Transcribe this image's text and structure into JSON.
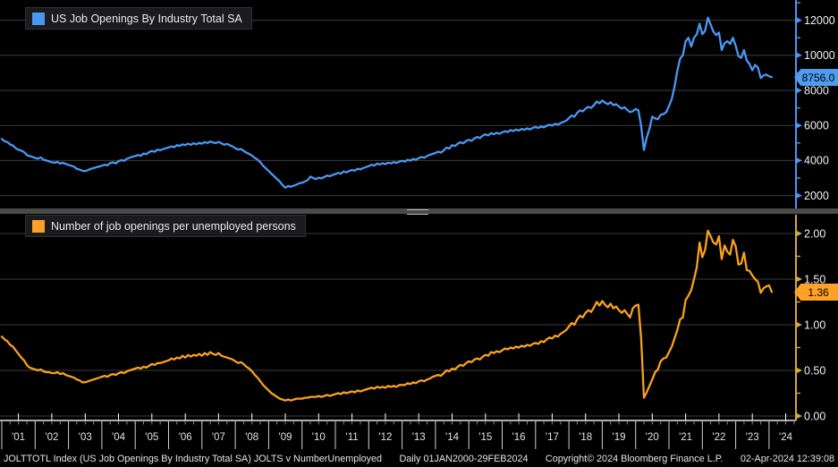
{
  "top_panel": {
    "legend_label": "US Job Openings By Industry Total SA",
    "legend_color": "#4a97f2",
    "last_value_label": "8756.0"
  },
  "bottom_panel": {
    "legend_label": "Number of job openings per unemployed persons",
    "legend_color": "#ffa028",
    "last_value_label": "1.36"
  },
  "colors": {
    "top_line": "#4a97f2",
    "top_axis": "#4a97f2",
    "bottom_line": "#f9a11b",
    "bottom_axis": "#d4a937",
    "grid": "#3c3c3c",
    "baseline": "#e8e8e8",
    "tick_label": "#f2f2f2",
    "year_label": "#e2e2e2"
  },
  "x_axis": {
    "year_labels": [
      "'01",
      "'02",
      "'03",
      "'04",
      "'05",
      "'06",
      "'07",
      "'08",
      "'09",
      "'10",
      "'11",
      "'12",
      "'13",
      "'14",
      "'15",
      "'16",
      "'17",
      "'18",
      "'19",
      "'20",
      "'21",
      "'22",
      "'23",
      "'24"
    ]
  },
  "status_bar": {
    "left": "JOLTTOTL Index (US Job Openings By Industry Total SA) JOLTS v NumberUnemployed",
    "range": "Daily 01JAN2000-29FEB2024",
    "copyright": "Copyright© 2024 Bloomberg Finance L.P.",
    "timestamp": "02-Apr-2024 12:39:08"
  },
  "chart_data": [
    {
      "type": "line",
      "title": "US Job Openings By Industry Total SA",
      "panel": "top",
      "x_start": "2001-01",
      "x_end": "2024-02",
      "freq": "monthly",
      "ylim": [
        1500,
        13000
      ],
      "yticks": [
        2000,
        4000,
        6000,
        8000,
        10000,
        12000
      ],
      "yticks_minor": [
        3000,
        5000,
        7000,
        9000,
        11000,
        13000
      ],
      "last_value": 8756.0,
      "legend_position": "top-left",
      "grid": true,
      "series": [
        {
          "name": "US Job Openings By Industry Total SA",
          "color": "#4a97f2",
          "values": [
            5230,
            5100,
            5050,
            4920,
            4850,
            4700,
            4610,
            4560,
            4480,
            4310,
            4250,
            4210,
            4150,
            4100,
            4180,
            4050,
            4000,
            3950,
            3900,
            3870,
            3920,
            3820,
            3870,
            3800,
            3750,
            3700,
            3650,
            3520,
            3480,
            3420,
            3390,
            3460,
            3520,
            3570,
            3610,
            3660,
            3700,
            3760,
            3720,
            3850,
            3900,
            3830,
            3960,
            4020,
            3980,
            4100,
            4160,
            4220,
            4250,
            4310,
            4270,
            4400,
            4360,
            4480,
            4540,
            4500,
            4620,
            4580,
            4650,
            4700,
            4740,
            4800,
            4760,
            4870,
            4830,
            4920,
            4880,
            4960,
            4900,
            4980,
            4930,
            5000,
            4960,
            5050,
            5000,
            5080,
            5030,
            4990,
            5060,
            4980,
            4900,
            4950,
            4870,
            4800,
            4700,
            4620,
            4660,
            4550,
            4450,
            4380,
            4280,
            4150,
            4050,
            3900,
            3700,
            3550,
            3400,
            3250,
            3100,
            2950,
            2800,
            2600,
            2450,
            2550,
            2500,
            2560,
            2620,
            2700,
            2730,
            2800,
            2880,
            3080,
            3000,
            2940,
            3020,
            2980,
            3060,
            3140,
            3100,
            3180,
            3230,
            3290,
            3250,
            3370,
            3320,
            3410,
            3460,
            3420,
            3530,
            3490,
            3570,
            3620,
            3680,
            3760,
            3710,
            3820,
            3770,
            3840,
            3790,
            3880,
            3830,
            3910,
            3860,
            3940,
            3980,
            3940,
            4040,
            3990,
            4090,
            4040,
            4140,
            4200,
            4160,
            4260,
            4320,
            4380,
            4430,
            4500,
            4450,
            4580,
            4740,
            4680,
            4880,
            4820,
            4960,
            5040,
            4980,
            5110,
            5180,
            5120,
            5260,
            5340,
            5280,
            5420,
            5490,
            5430,
            5560,
            5500,
            5580,
            5520,
            5600,
            5670,
            5620,
            5730,
            5680,
            5760,
            5710,
            5800,
            5750,
            5830,
            5770,
            5860,
            5910,
            5850,
            5940,
            5890,
            5980,
            6040,
            5990,
            6090,
            6040,
            6140,
            6200,
            6260,
            6420,
            6560,
            6500,
            6720,
            6860,
            6800,
            6960,
            7060,
            7000,
            7160,
            7360,
            7260,
            7420,
            7300,
            7210,
            7320,
            7160,
            7210,
            7080,
            6960,
            7040,
            6880,
            6760,
            6810,
            6940,
            6860,
            5960,
            4600,
            5300,
            5800,
            6500,
            6400,
            6350,
            6600,
            6650,
            6750,
            7100,
            7500,
            8200,
            9100,
            9800,
            10000,
            10800,
            11000,
            10500,
            11000,
            11200,
            11800,
            11200,
            11400,
            12150,
            11750,
            11350,
            11150,
            11300,
            10300,
            10700,
            10800,
            10650,
            11000,
            10550,
            9950,
            9850,
            10300,
            9700,
            9500,
            9150,
            9450,
            9300,
            8700,
            8850,
            8900,
            8800,
            8756
          ]
        }
      ]
    },
    {
      "type": "line",
      "title": "Number of job openings per unemployed persons",
      "panel": "bottom",
      "x_start": "2001-01",
      "x_end": "2024-02",
      "freq": "monthly",
      "ylim": [
        0,
        2.2
      ],
      "yticks": [
        0.0,
        0.5,
        1.0,
        1.5,
        2.0
      ],
      "yticks_minor": [
        0.25,
        0.75,
        1.25,
        1.75
      ],
      "last_value": 1.36,
      "legend_position": "top-left",
      "grid": true,
      "series": [
        {
          "name": "Number of job openings per unemployed persons",
          "color": "#f9a11b",
          "values": [
            0.87,
            0.84,
            0.82,
            0.78,
            0.76,
            0.72,
            0.68,
            0.64,
            0.61,
            0.56,
            0.53,
            0.52,
            0.51,
            0.5,
            0.51,
            0.49,
            0.48,
            0.48,
            0.47,
            0.47,
            0.48,
            0.46,
            0.47,
            0.45,
            0.44,
            0.43,
            0.42,
            0.4,
            0.39,
            0.37,
            0.37,
            0.38,
            0.39,
            0.4,
            0.41,
            0.42,
            0.43,
            0.44,
            0.43,
            0.45,
            0.46,
            0.45,
            0.47,
            0.48,
            0.47,
            0.49,
            0.5,
            0.51,
            0.52,
            0.53,
            0.52,
            0.54,
            0.53,
            0.55,
            0.57,
            0.56,
            0.58,
            0.58,
            0.59,
            0.6,
            0.61,
            0.63,
            0.62,
            0.64,
            0.63,
            0.66,
            0.64,
            0.67,
            0.65,
            0.67,
            0.66,
            0.68,
            0.66,
            0.69,
            0.67,
            0.7,
            0.68,
            0.67,
            0.69,
            0.66,
            0.65,
            0.64,
            0.63,
            0.62,
            0.6,
            0.58,
            0.59,
            0.57,
            0.54,
            0.52,
            0.49,
            0.45,
            0.42,
            0.38,
            0.34,
            0.31,
            0.28,
            0.25,
            0.23,
            0.21,
            0.19,
            0.18,
            0.17,
            0.18,
            0.17,
            0.18,
            0.19,
            0.19,
            0.19,
            0.2,
            0.2,
            0.21,
            0.21,
            0.21,
            0.22,
            0.21,
            0.22,
            0.23,
            0.22,
            0.23,
            0.24,
            0.25,
            0.24,
            0.26,
            0.25,
            0.26,
            0.27,
            0.26,
            0.28,
            0.27,
            0.28,
            0.29,
            0.3,
            0.31,
            0.3,
            0.32,
            0.31,
            0.32,
            0.31,
            0.33,
            0.32,
            0.33,
            0.32,
            0.34,
            0.34,
            0.34,
            0.36,
            0.35,
            0.37,
            0.36,
            0.38,
            0.39,
            0.38,
            0.4,
            0.41,
            0.43,
            0.44,
            0.45,
            0.44,
            0.47,
            0.5,
            0.49,
            0.52,
            0.51,
            0.54,
            0.56,
            0.55,
            0.58,
            0.6,
            0.59,
            0.62,
            0.63,
            0.62,
            0.65,
            0.67,
            0.66,
            0.7,
            0.69,
            0.71,
            0.7,
            0.72,
            0.74,
            0.73,
            0.75,
            0.74,
            0.76,
            0.75,
            0.77,
            0.76,
            0.78,
            0.77,
            0.79,
            0.8,
            0.79,
            0.82,
            0.81,
            0.84,
            0.86,
            0.85,
            0.88,
            0.87,
            0.9,
            0.92,
            0.94,
            0.98,
            1.02,
            1.0,
            1.06,
            1.1,
            1.08,
            1.13,
            1.16,
            1.14,
            1.19,
            1.25,
            1.21,
            1.26,
            1.22,
            1.19,
            1.23,
            1.18,
            1.2,
            1.16,
            1.13,
            1.16,
            1.12,
            1.08,
            1.18,
            1.21,
            1.22,
            0.85,
            0.2,
            0.26,
            0.33,
            0.4,
            0.48,
            0.51,
            0.6,
            0.63,
            0.64,
            0.7,
            0.76,
            0.85,
            0.94,
            1.06,
            1.08,
            1.27,
            1.32,
            1.38,
            1.5,
            1.63,
            1.9,
            1.74,
            1.82,
            2.03,
            1.97,
            1.9,
            1.88,
            1.97,
            1.72,
            1.87,
            1.8,
            1.77,
            1.93,
            1.86,
            1.66,
            1.67,
            1.79,
            1.6,
            1.59,
            1.54,
            1.5,
            1.47,
            1.35,
            1.4,
            1.42,
            1.43,
            1.36
          ]
        }
      ]
    }
  ]
}
